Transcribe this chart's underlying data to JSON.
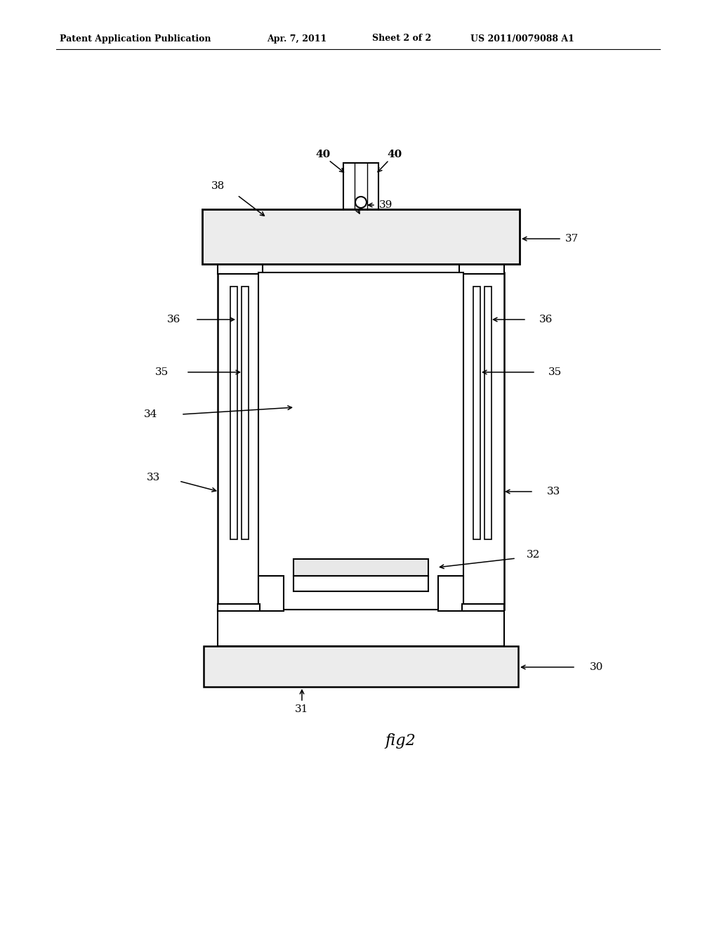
{
  "bg_color": "#ffffff",
  "line_color": "#000000",
  "header_text": "Patent Application Publication",
  "header_date": "Apr. 7, 2011",
  "header_sheet": "Sheet 2 of 2",
  "header_patent": "US 2011/0079088 A1",
  "fig_label": "fig2"
}
